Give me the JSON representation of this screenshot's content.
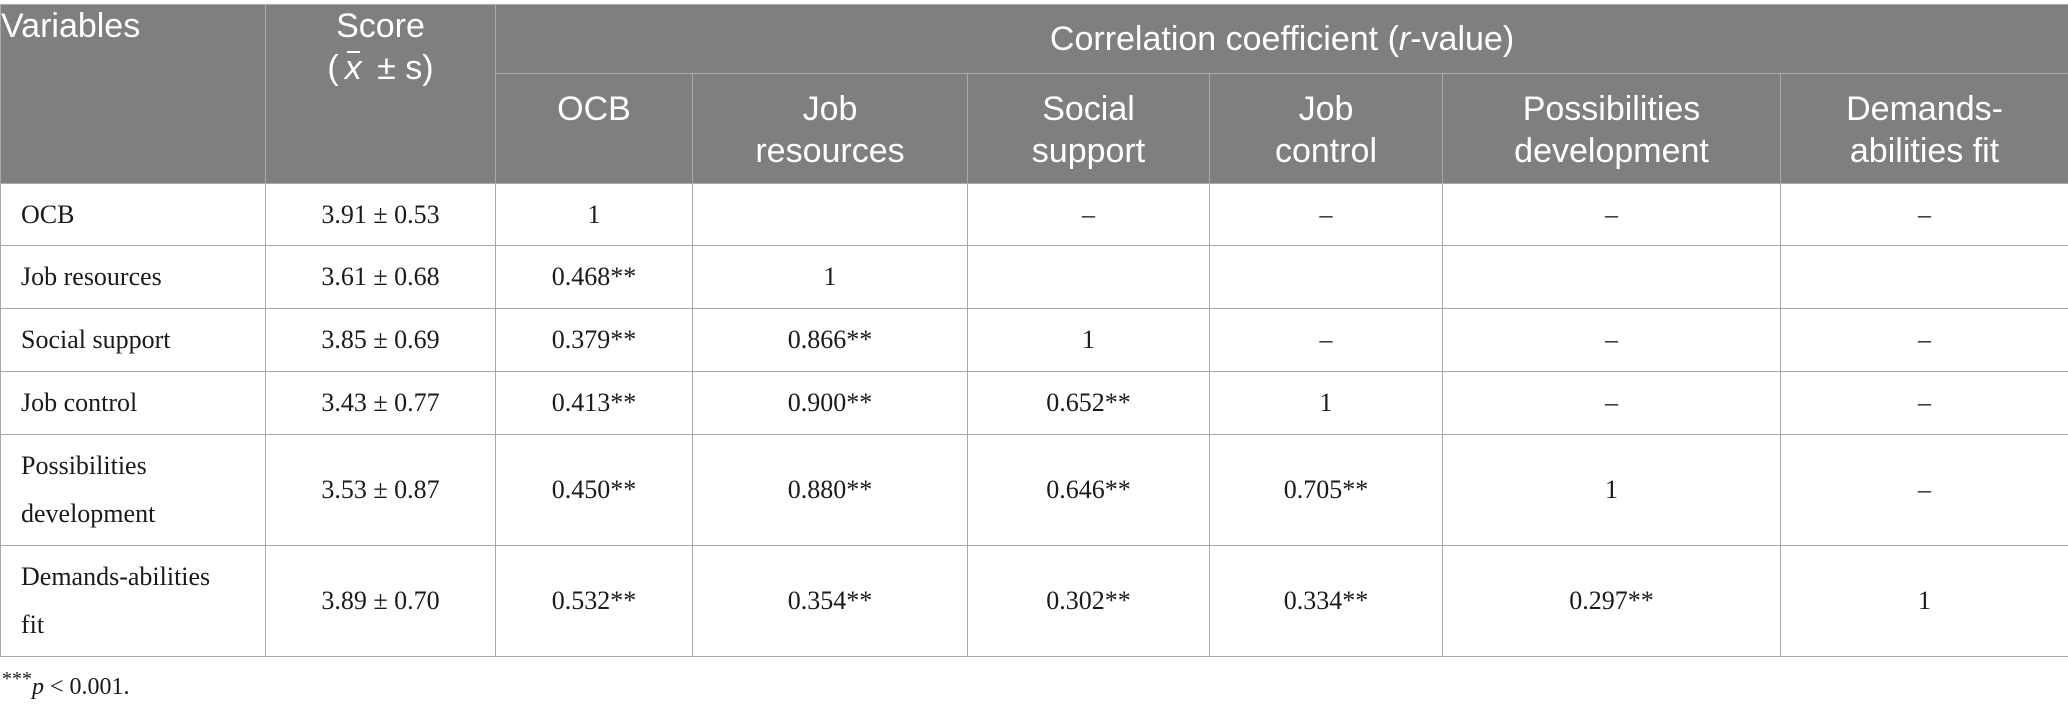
{
  "header": {
    "variables": "Variables",
    "score": "Score",
    "score_sub": "( x ± s)",
    "score_sub_pre": "(",
    "score_sub_x": "x",
    "score_sub_post": " ± s)",
    "group_pre": "Correlation coefficient (",
    "group_italic": "r",
    "group_post": "-value)",
    "columns": [
      [
        "OCB"
      ],
      [
        "Job",
        "resources"
      ],
      [
        "Social",
        "support"
      ],
      [
        "Job",
        "control"
      ],
      [
        "Possibilities",
        "development"
      ],
      [
        "Demands-",
        "abilities fit"
      ]
    ]
  },
  "rows": [
    {
      "label": [
        "OCB"
      ],
      "score": "3.91 ± 0.53",
      "cells": [
        "1",
        "",
        "–",
        "–",
        "–",
        "–"
      ]
    },
    {
      "label": [
        "Job resources"
      ],
      "score": "3.61 ± 0.68",
      "cells": [
        "0.468**",
        "1",
        "",
        "",
        "",
        ""
      ]
    },
    {
      "label": [
        "Social support"
      ],
      "score": "3.85 ± 0.69",
      "cells": [
        "0.379**",
        "0.866**",
        "1",
        "–",
        "–",
        "–"
      ]
    },
    {
      "label": [
        "Job control"
      ],
      "score": "3.43 ± 0.77",
      "cells": [
        "0.413**",
        "0.900**",
        "0.652**",
        "1",
        "–",
        "–"
      ]
    },
    {
      "label": [
        "Possibilities",
        "development"
      ],
      "score": "3.53 ± 0.87",
      "cells": [
        "0.450**",
        "0.880**",
        "0.646**",
        "0.705**",
        "1",
        "–"
      ]
    },
    {
      "label": [
        "Demands-abilities",
        "fit"
      ],
      "score": "3.89 ± 0.70",
      "cells": [
        "0.532**",
        "0.354**",
        "0.302**",
        "0.334**",
        "0.297**",
        "1"
      ]
    }
  ],
  "footnote": {
    "stars": "***",
    "p": "p",
    "rest": " < 0.001."
  }
}
